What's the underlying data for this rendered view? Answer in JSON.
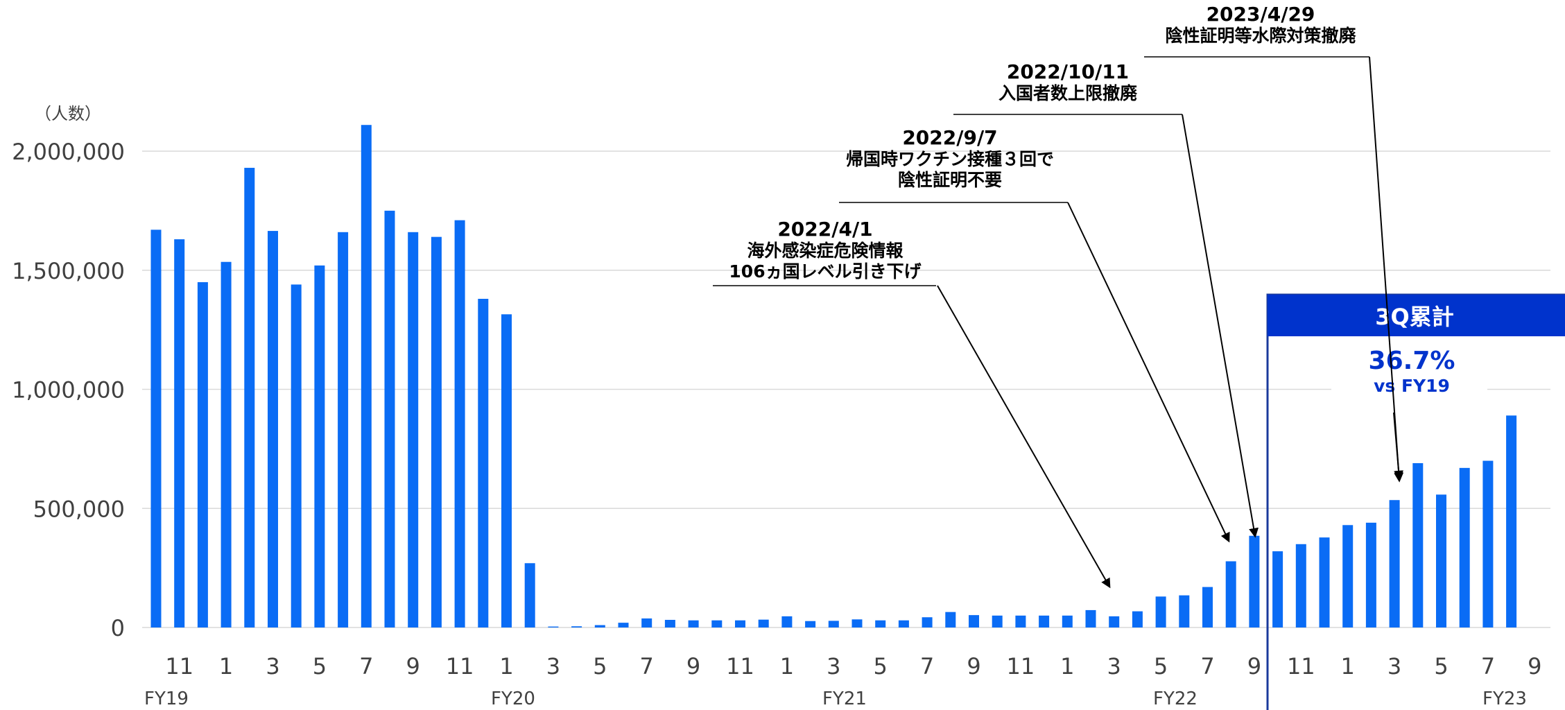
{
  "colors": {
    "bar": "#0a6cf5",
    "box_header": "#0033cc",
    "box_border": "#1a3a9c",
    "grid": "#d9d9d9",
    "text": "#404040",
    "highlight_text": "#0033cc"
  },
  "chart_data": {
    "type": "bar",
    "unit_label": "（人数）",
    "ylim": [
      0,
      2100000
    ],
    "yticks": [
      "0",
      "500,000",
      "1,000,000",
      "1,500,000",
      "2,000,000"
    ],
    "ytick_values": [
      0,
      500000,
      1000000,
      1500000,
      2000000
    ],
    "grid": true,
    "categories": [
      "2019-10",
      "2019-11",
      "2019-12",
      "2020-01",
      "2020-02",
      "2020-03",
      "2020-04",
      "2020-05",
      "2020-06",
      "2020-07",
      "2020-08",
      "2020-09",
      "2020-10",
      "2020-11",
      "2020-12",
      "2021-01",
      "2021-02",
      "2021-03",
      "2021-04",
      "2021-05",
      "2021-06",
      "2021-07",
      "2021-08",
      "2021-09",
      "2021-10",
      "2021-11",
      "2021-12",
      "2022-01",
      "2022-02",
      "2022-03",
      "2022-04",
      "2022-05",
      "2022-06",
      "2022-07",
      "2022-08",
      "2022-09",
      "2022-10",
      "2022-11",
      "2022-12",
      "2023-01",
      "2023-02",
      "2023-03",
      "2023-04",
      "2023-05",
      "2023-06",
      "2023-07",
      "2023-08",
      "2023-09",
      "2023-10",
      "2023-11",
      "2023-12",
      "2024-01",
      "2024-02",
      "2024-03",
      "2024-04",
      "2024-05",
      "2024-06",
      "2024-07",
      "2024-08",
      "2024-09"
    ],
    "values": [
      1670000,
      1630000,
      1450000,
      1535000,
      1930000,
      1665000,
      1440000,
      1520000,
      1660000,
      2110000,
      1750000,
      1660000,
      1640000,
      1710000,
      1380000,
      1315000,
      270000,
      4000,
      5000,
      10000,
      20000,
      38000,
      32000,
      30000,
      30000,
      30000,
      33000,
      47000,
      27000,
      28000,
      34000,
      30000,
      30000,
      43000,
      65000,
      52000,
      50000,
      50000,
      50000,
      50000,
      73000,
      47000,
      68000,
      130000,
      135000,
      170000,
      278000,
      385000,
      320000,
      350000,
      378000,
      430000,
      440000,
      535000,
      690000,
      558000,
      670000,
      700000,
      890000,
      0
    ],
    "x_tick_labels": [
      "11",
      "1",
      "3",
      "5",
      "7",
      "9",
      "11",
      "1",
      "3",
      "5",
      "7",
      "9",
      "11",
      "1",
      "3",
      "5",
      "7",
      "9",
      "11",
      "1",
      "3",
      "5",
      "7",
      "9",
      "11",
      "1",
      "3",
      "5",
      "7",
      "9"
    ],
    "fy_labels": [
      "FY19",
      "FY20",
      "FY21",
      "FY22",
      "FY23"
    ],
    "annotations": [
      {
        "date": "2022/4/1",
        "lines": [
          "海外感染症危険情報",
          "106ヵ国レベル引き下げ"
        ]
      },
      {
        "date": "2022/9/7",
        "lines": [
          "帰国時ワクチン接種３回で",
          "陰性証明不要"
        ]
      },
      {
        "date": "2022/10/11",
        "lines": [
          "入国者数上限撤廃"
        ]
      },
      {
        "date": "2023/4/29",
        "lines": [
          "陰性証明等水際対策撤廃"
        ]
      }
    ],
    "highlight_box": {
      "title": "3Q累計",
      "value": "36.7%",
      "subtitle": "vs FY19"
    }
  }
}
